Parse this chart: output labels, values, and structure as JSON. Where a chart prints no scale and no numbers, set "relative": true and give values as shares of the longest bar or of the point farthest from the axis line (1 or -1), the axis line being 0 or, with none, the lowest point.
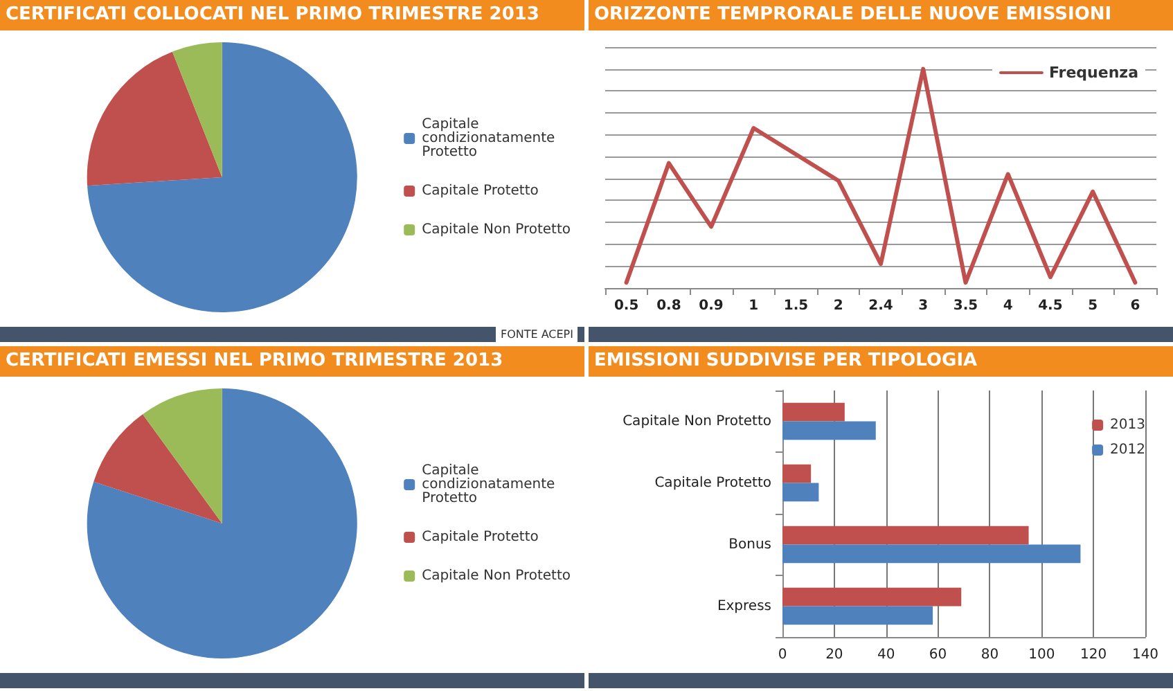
{
  "chart_data": [
    {
      "type": "pie",
      "title": "CERTIFICATI COLLOCATI NEL PRIMO TRIMESTRE 2013",
      "categories": [
        "Capitale condizionatamente Protetto",
        "Capitale Protetto",
        "Capitale Non Protetto"
      ],
      "values": [
        74,
        20,
        6
      ],
      "colors": [
        "#4f81bd",
        "#c0504d",
        "#9bbb59"
      ],
      "legend": "right",
      "annotations": [
        "FONTE ACEPI"
      ]
    },
    {
      "type": "line",
      "title": "ORIZZONTE TEMPRORALE  DELLE NUOVE EMISSIONI",
      "categories": [
        "0.5",
        "0.8",
        "0.9",
        "1",
        "1.5",
        "2",
        "2.4",
        "3",
        "3.5",
        "4",
        "4.5",
        "5",
        "6"
      ],
      "relative": true,
      "series": [
        {
          "name": "Frequenza",
          "color": "#c0504d",
          "values": [
            0.025,
            0.57,
            0.28,
            0.73,
            0.61,
            0.49,
            0.11,
            1,
            0.025,
            0.52,
            0.05,
            0.44,
            0.025
          ]
        }
      ],
      "grid": "y",
      "legend": "top right",
      "marker": "none",
      "line_style": "solid"
    },
    {
      "type": "pie",
      "title": "CERTIFICATI EMESSI NEL PRIMO TRIMESTRE 2013",
      "categories": [
        "Capitale condizionatamente Protetto",
        "Capitale Protetto",
        "Capitale Non Protetto"
      ],
      "values": [
        80,
        10,
        10
      ],
      "colors": [
        "#4f81bd",
        "#c0504d",
        "#9bbb59"
      ],
      "legend": "right"
    },
    {
      "type": "bar",
      "title": "EMISSIONI SUDDIVISE PER TIPOLOGIA",
      "orientation": "horizontal",
      "categories": [
        "Capitale Non Protetto",
        "Capitale Protetto",
        "Bonus",
        "Express"
      ],
      "series": [
        {
          "name": "2013",
          "color": "#c0504d",
          "values": [
            24,
            11,
            95,
            69
          ]
        },
        {
          "name": "2012",
          "color": "#4f81bd",
          "values": [
            36,
            14,
            115,
            58
          ]
        }
      ],
      "xlim": [
        0,
        140
      ],
      "xticks": [
        0,
        20,
        40,
        60,
        80,
        100,
        120,
        140
      ],
      "grid": "x",
      "legend": "top right"
    }
  ]
}
